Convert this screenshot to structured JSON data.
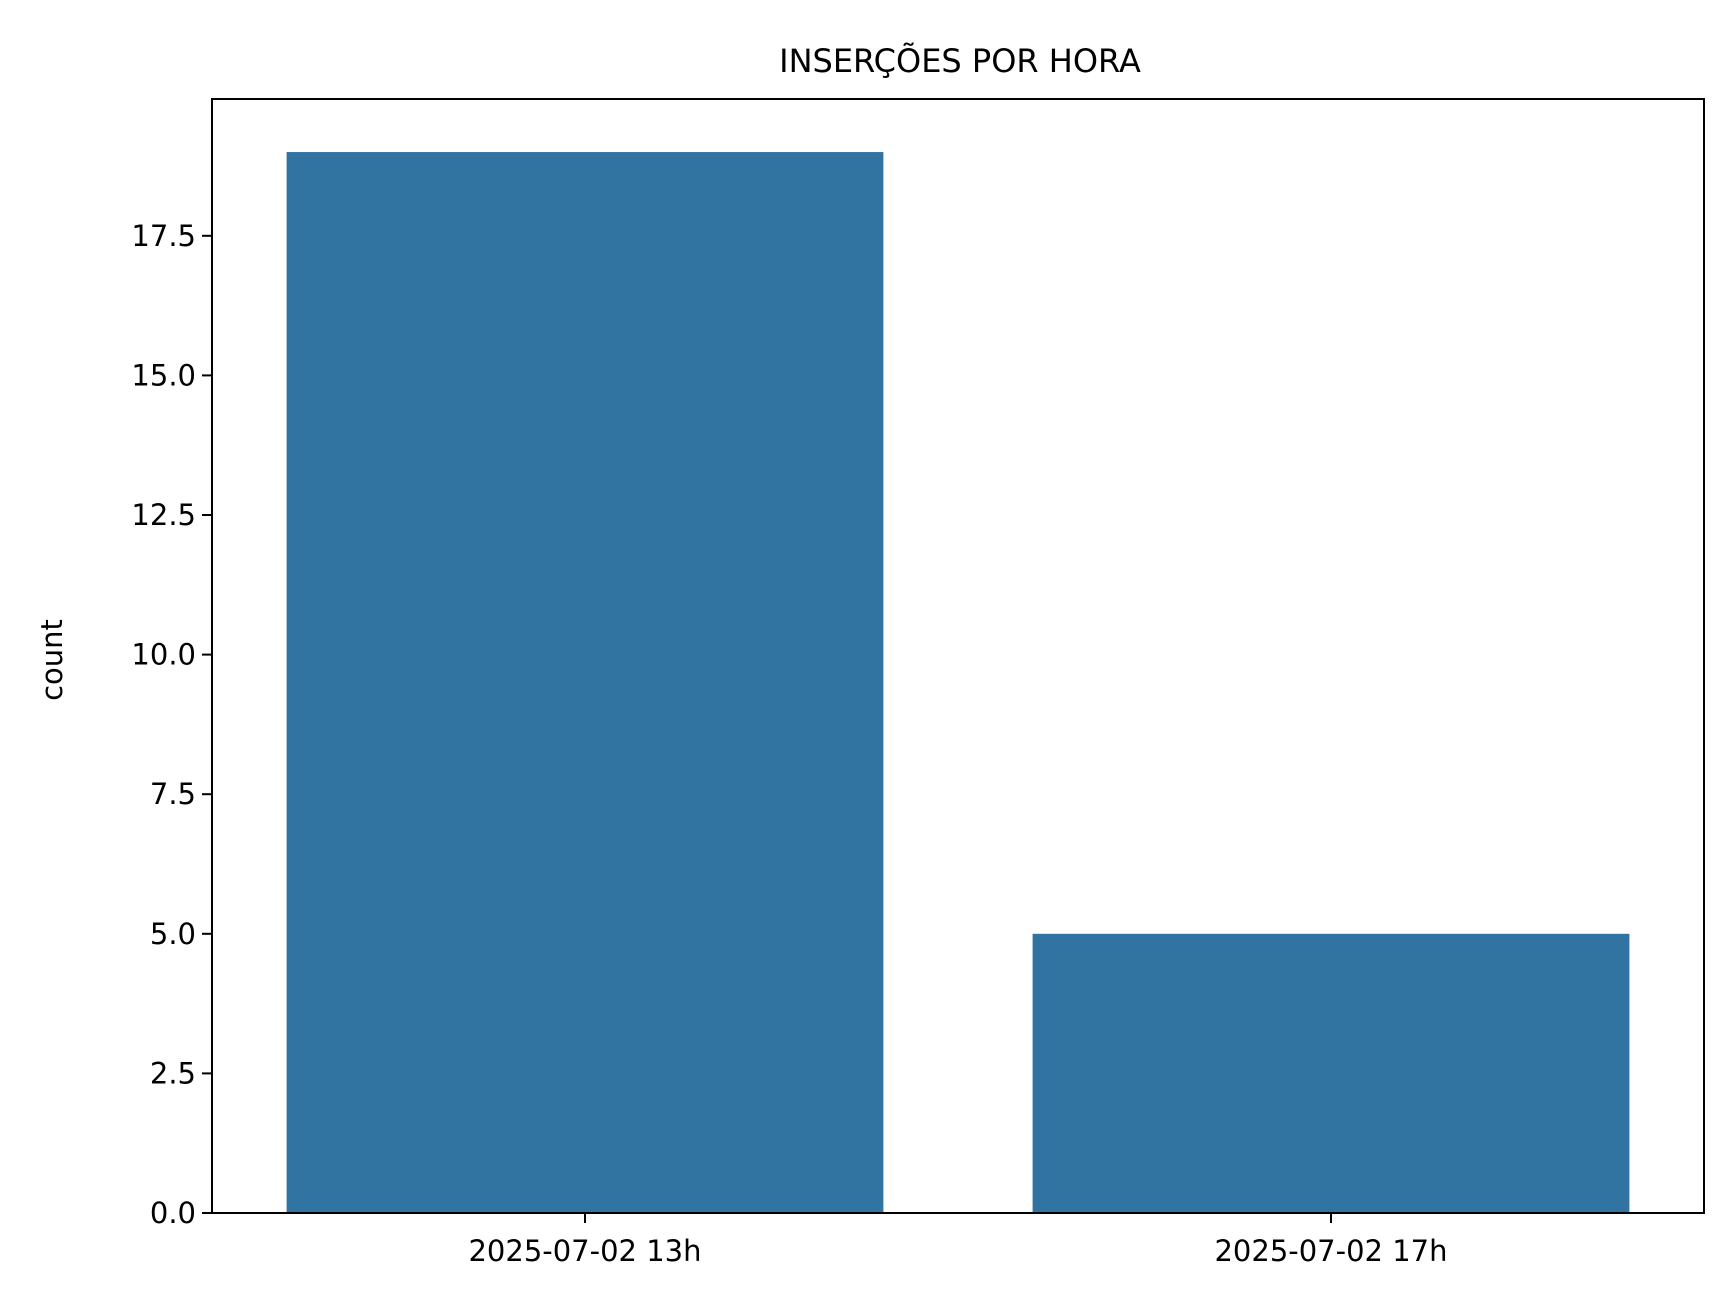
{
  "chart_data": {
    "type": "bar",
    "title": "INSERÇÕES POR HORA",
    "xlabel": "",
    "ylabel": "count",
    "categories": [
      "2025-07-02 13h",
      "2025-07-02 17h"
    ],
    "values": [
      19,
      5
    ],
    "ylim": [
      0,
      19.95
    ],
    "yticks": [
      0,
      2.5,
      5,
      7.5,
      10,
      12.5,
      15,
      17.5
    ],
    "ytick_labels": [
      "0.0",
      "2.5",
      "5.0",
      "7.5",
      "10.0",
      "12.5",
      "15.0",
      "17.5"
    ],
    "bar_color": "#3274a1",
    "grid": false,
    "legend": "none"
  }
}
